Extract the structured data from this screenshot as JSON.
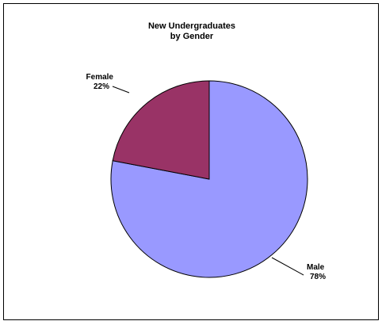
{
  "chart_data": {
    "type": "pie",
    "title": "New Undergraduates\nby Gender",
    "slices": [
      {
        "label": "Female",
        "value": 22,
        "display": "22%",
        "color": "#993366"
      },
      {
        "label": "Male",
        "value": 78,
        "display": "78%",
        "color": "#9999ff"
      }
    ],
    "border_color": "#000000",
    "legend": "none"
  }
}
